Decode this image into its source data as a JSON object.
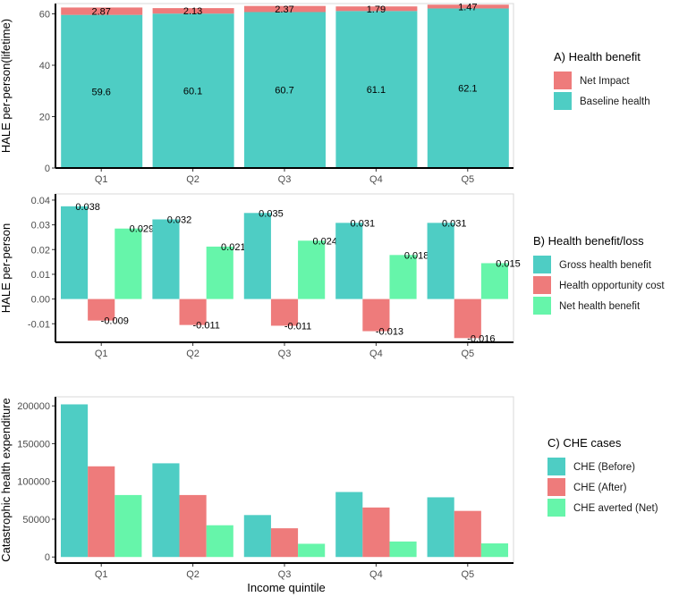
{
  "xlabel": "Income quintile",
  "chart_data": [
    {
      "type": "bar",
      "stacked": true,
      "categories": [
        "Q1",
        "Q2",
        "Q3",
        "Q4",
        "Q5"
      ],
      "ylabel": "HALE per-person(lifetime)",
      "ylim": [
        0,
        64
      ],
      "yticks": [
        "0",
        "20",
        "40",
        "60"
      ],
      "ytick_values": [
        0,
        20,
        40,
        60
      ],
      "legend_title": "A) Health benefit",
      "series": [
        {
          "name": "Baseline health",
          "color": "#4ECDC4",
          "values": [
            59.6,
            60.1,
            60.7,
            61.1,
            62.1
          ],
          "labels": [
            "59.6",
            "60.1",
            "60.7",
            "61.1",
            "62.1"
          ]
        },
        {
          "name": "Net Impact",
          "color": "#EE7B7B",
          "values": [
            2.87,
            2.13,
            2.37,
            1.79,
            1.47
          ],
          "labels": [
            "2.87",
            "2.13",
            "2.37",
            "1.79",
            "1.47"
          ]
        }
      ],
      "legend_order": [
        1,
        0
      ]
    },
    {
      "type": "bar",
      "stacked": false,
      "categories": [
        "Q1",
        "Q2",
        "Q3",
        "Q4",
        "Q5"
      ],
      "ylabel": "HALE per-person",
      "ylim": [
        -0.0175,
        0.0425
      ],
      "yticks": [
        "-0.01",
        "0.00",
        "0.01",
        "0.02",
        "0.03",
        "0.04"
      ],
      "ytick_values": [
        -0.01,
        0.0,
        0.01,
        0.02,
        0.03,
        0.04
      ],
      "legend_title": "B) Health benefit/loss",
      "series": [
        {
          "name": "Gross health benefit",
          "color": "#4ECDC4",
          "values": [
            0.0375,
            0.0322,
            0.0348,
            0.0308,
            0.0308
          ],
          "labels": [
            "0.038",
            "0.032",
            "0.035",
            "0.031",
            "0.031"
          ]
        },
        {
          "name": "Health opportunity cost",
          "color": "#EE7B7B",
          "values": [
            -0.0087,
            -0.0105,
            -0.0108,
            -0.013,
            -0.0158
          ],
          "labels": [
            "-0.009",
            "-0.011",
            "-0.011",
            "-0.013",
            "-0.016"
          ]
        },
        {
          "name": "Net health benefit",
          "color": "#66F5AA",
          "values": [
            0.0285,
            0.0212,
            0.0236,
            0.0178,
            0.0145
          ],
          "labels": [
            "0.029",
            "0.021",
            "0.024",
            "0.018",
            "0.015"
          ]
        }
      ],
      "legend_order": [
        0,
        1,
        2
      ]
    },
    {
      "type": "bar",
      "stacked": false,
      "categories": [
        "Q1",
        "Q2",
        "Q3",
        "Q4",
        "Q5"
      ],
      "ylabel": "Catastrophic health expenditure",
      "ylim": [
        -8000,
        212000
      ],
      "yticks": [
        "0",
        "50000",
        "100000",
        "150000",
        "200000"
      ],
      "ytick_values": [
        0,
        50000,
        100000,
        150000,
        200000
      ],
      "legend_title": "C) CHE cases",
      "series": [
        {
          "name": "CHE (Before)",
          "color": "#4ECDC4",
          "values": [
            202000,
            124000,
            55500,
            86000,
            79000
          ]
        },
        {
          "name": "CHE (After)",
          "color": "#EE7B7B",
          "values": [
            120000,
            82000,
            38000,
            65500,
            61000
          ]
        },
        {
          "name": "CHE averted (Net)",
          "color": "#66F5AA",
          "values": [
            82000,
            42000,
            17500,
            20500,
            18000
          ]
        }
      ],
      "legend_order": [
        0,
        1,
        2
      ]
    }
  ]
}
